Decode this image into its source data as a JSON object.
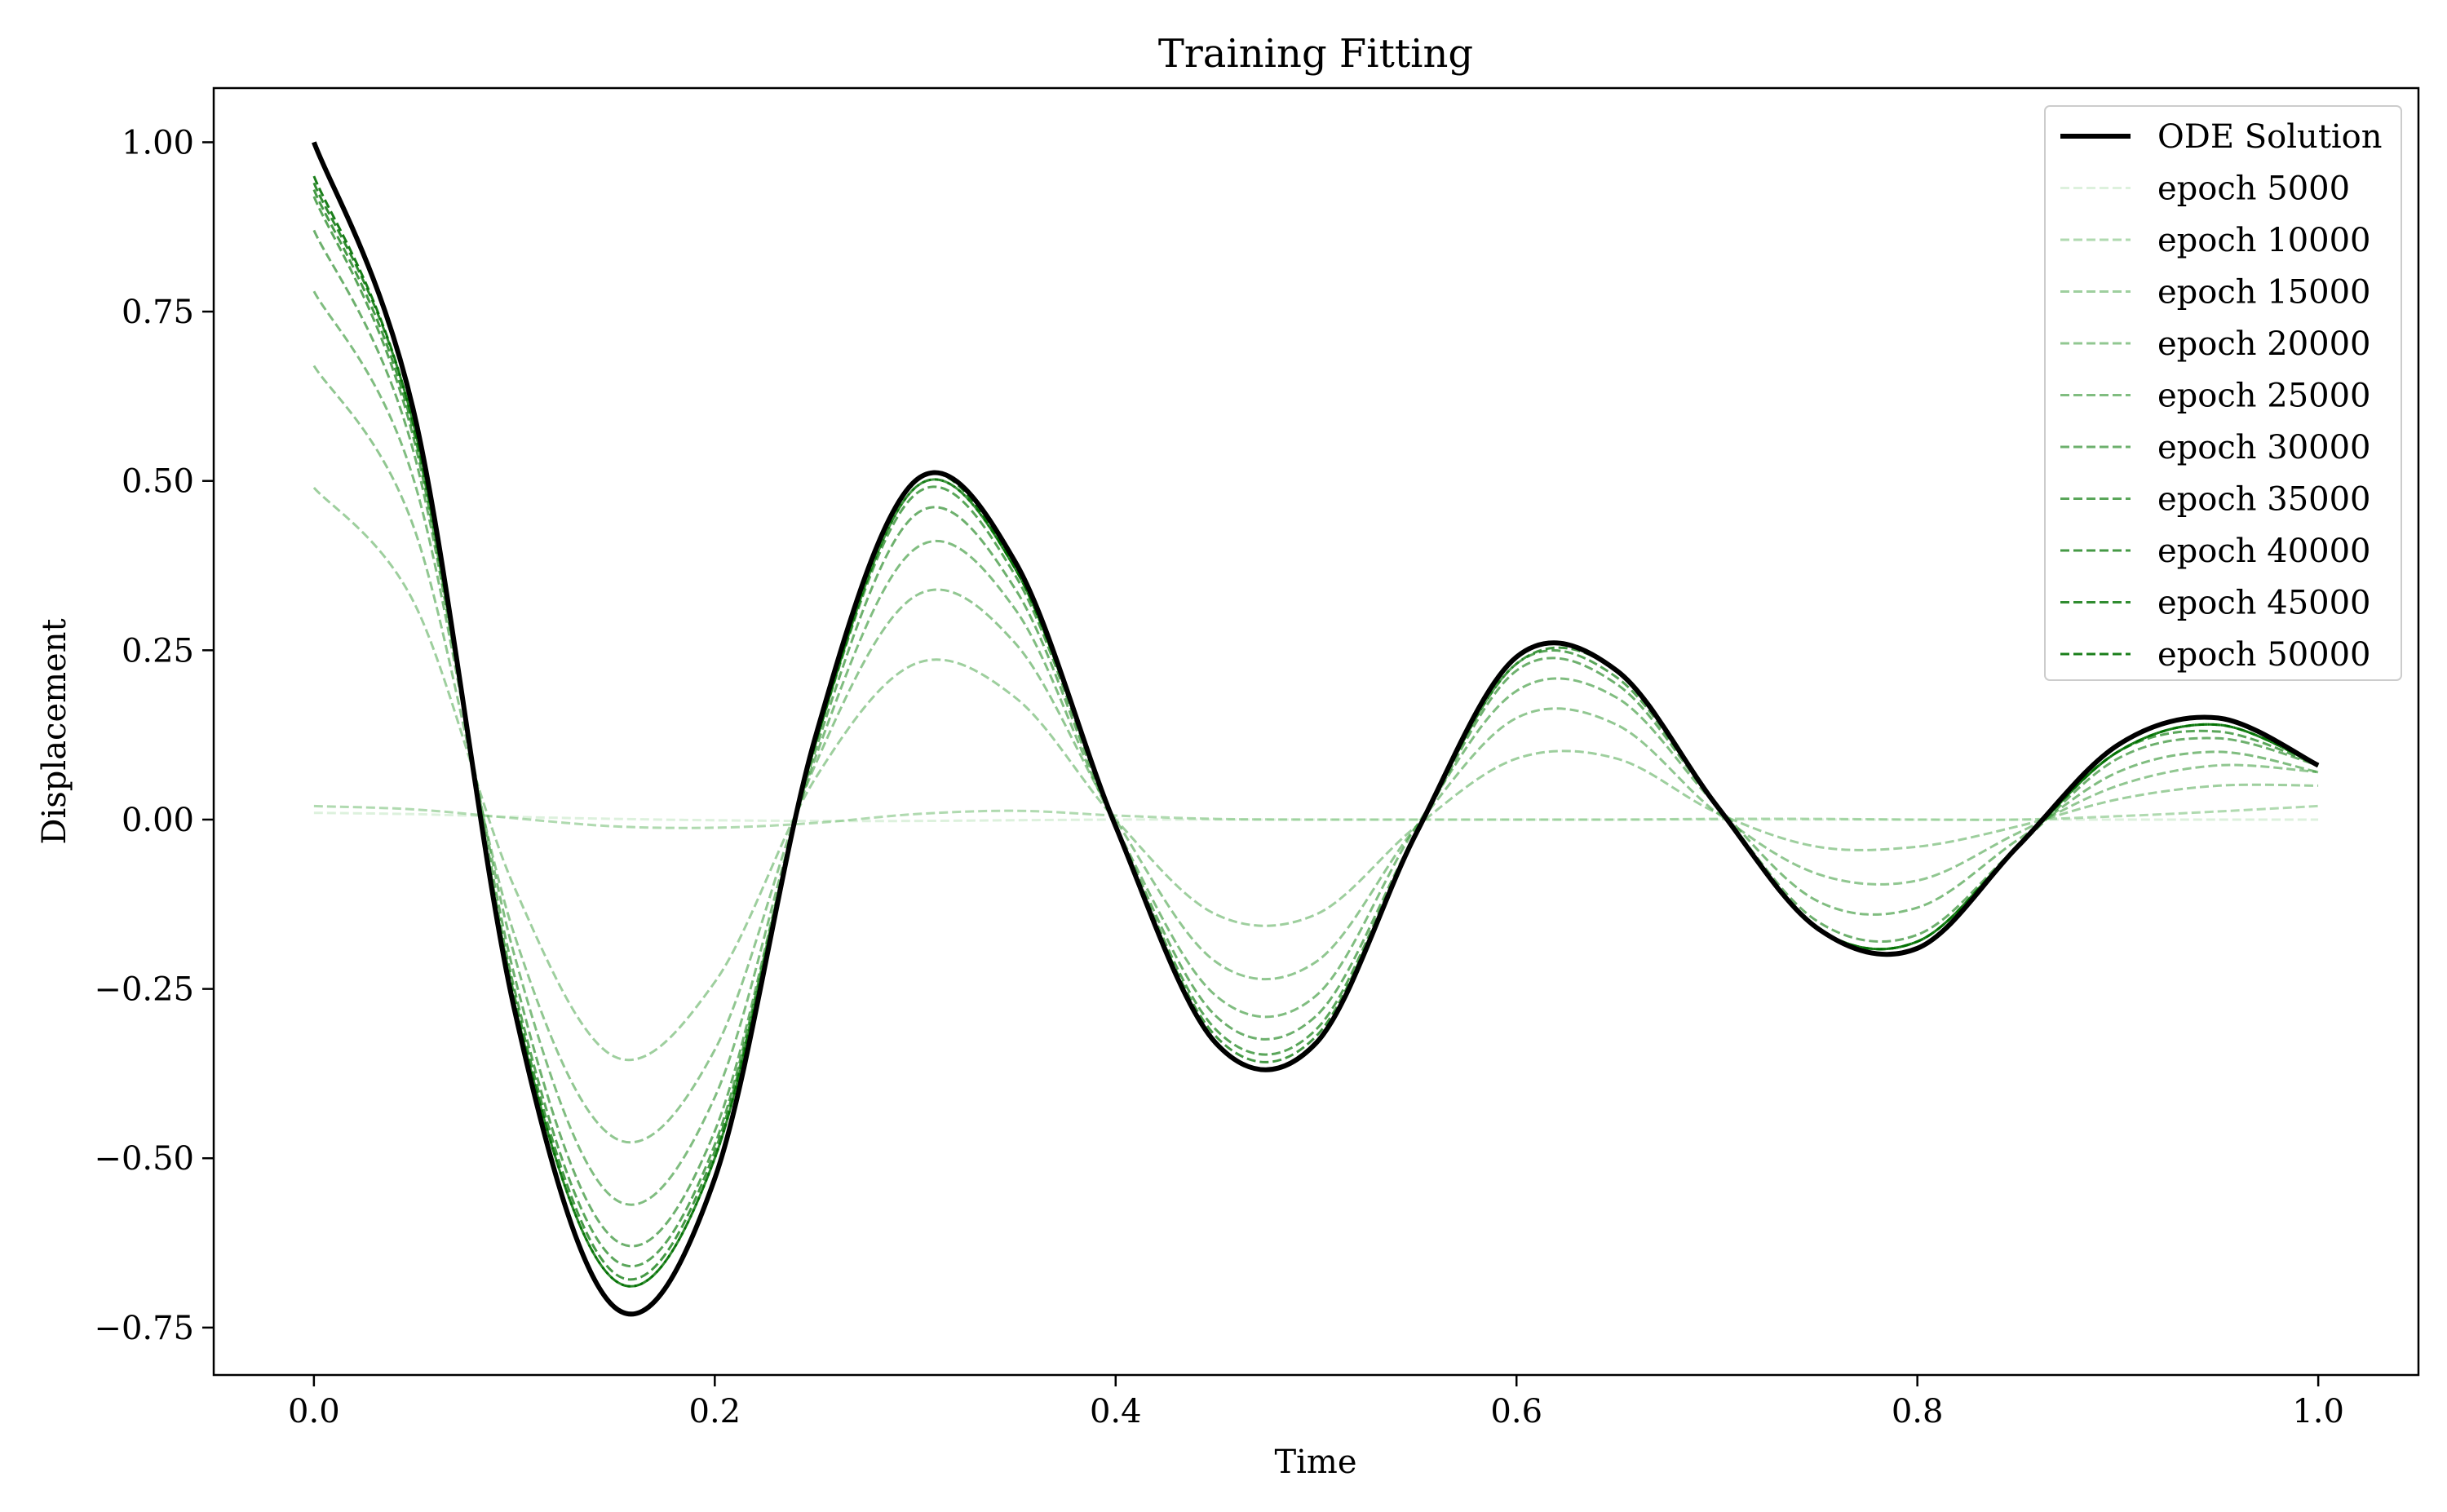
{
  "chart_data": {
    "type": "line",
    "title": "Training Fitting",
    "xlabel": "Time",
    "ylabel": "Displacement",
    "xlim": [
      -0.05,
      1.05
    ],
    "ylim": [
      -0.82,
      1.08
    ],
    "xticks": [
      0.0,
      0.2,
      0.4,
      0.6,
      0.8,
      1.0
    ],
    "xtick_labels": [
      "0.0",
      "0.2",
      "0.4",
      "0.6",
      "0.8",
      "1.0"
    ],
    "yticks": [
      1.0,
      0.75,
      0.5,
      0.25,
      0.0,
      -0.25,
      -0.5,
      -0.75
    ],
    "ytick_labels": [
      "1.00",
      "0.75",
      "0.50",
      "0.25",
      "0.00",
      "−0.25",
      "−0.50",
      "−0.75"
    ],
    "grid": false,
    "legend_position": "top-right",
    "x": [
      0.0,
      0.05,
      0.1,
      0.15,
      0.2,
      0.25,
      0.3,
      0.35,
      0.4,
      0.45,
      0.5,
      0.55,
      0.6,
      0.65,
      0.7,
      0.75,
      0.8,
      0.85,
      0.9,
      0.95,
      1.0
    ],
    "series": [
      {
        "name": "ODE Solution",
        "color": "#000000",
        "style": "solid",
        "opacity": 1.0,
        "values": [
          1.0,
          0.6,
          -0.28,
          -0.72,
          -0.53,
          0.12,
          0.5,
          0.38,
          -0.01,
          -0.33,
          -0.33,
          -0.02,
          0.24,
          0.22,
          0.02,
          -0.16,
          -0.19,
          -0.04,
          0.11,
          0.15,
          0.08
        ]
      },
      {
        "name": "epoch 5000",
        "color": "#8fd08f",
        "style": "dashed",
        "opacity": 0.3,
        "values": [
          0.01,
          0.008,
          0.004,
          0.001,
          -0.001,
          -0.002,
          -0.002,
          -0.001,
          0.0,
          0.0,
          0.0,
          0.0,
          0.0,
          0.0,
          0.0,
          0.0,
          0.0,
          0.0,
          0.0,
          0.0,
          0.0
        ]
      },
      {
        "name": "epoch 10000",
        "color": "#62b562",
        "style": "dashed",
        "opacity": 0.5,
        "values": [
          0.02,
          0.015,
          0.002,
          -0.01,
          -0.012,
          -0.005,
          0.008,
          0.013,
          0.006,
          0.001,
          0.0,
          0.0,
          0.0,
          0.0,
          0.001,
          0.001,
          0.0,
          0.0,
          0.005,
          0.012,
          0.02
        ]
      },
      {
        "name": "epoch 15000",
        "color": "#4fa84f",
        "style": "dashed",
        "opacity": 0.55,
        "values": [
          0.49,
          0.32,
          -0.1,
          -0.35,
          -0.24,
          0.06,
          0.23,
          0.18,
          0.0,
          -0.14,
          -0.14,
          -0.01,
          0.09,
          0.09,
          0.01,
          -0.04,
          -0.04,
          -0.01,
          0.03,
          0.05,
          0.05
        ]
      },
      {
        "name": "epoch 20000",
        "color": "#47a147",
        "style": "dashed",
        "opacity": 0.6,
        "values": [
          0.67,
          0.43,
          -0.17,
          -0.47,
          -0.34,
          0.08,
          0.33,
          0.26,
          0.0,
          -0.21,
          -0.21,
          -0.01,
          0.15,
          0.14,
          0.01,
          -0.08,
          -0.09,
          -0.02,
          0.05,
          0.08,
          0.07
        ]
      },
      {
        "name": "epoch 25000",
        "color": "#3c993c",
        "style": "dashed",
        "opacity": 0.65,
        "values": [
          0.78,
          0.5,
          -0.2,
          -0.56,
          -0.41,
          0.09,
          0.4,
          0.31,
          -0.01,
          -0.26,
          -0.26,
          -0.01,
          0.19,
          0.18,
          0.02,
          -0.12,
          -0.13,
          -0.03,
          0.07,
          0.1,
          0.07
        ]
      },
      {
        "name": "epoch 30000",
        "color": "#2f8f2f",
        "style": "dashed",
        "opacity": 0.7,
        "values": [
          0.87,
          0.54,
          -0.23,
          -0.62,
          -0.46,
          0.1,
          0.45,
          0.34,
          -0.01,
          -0.29,
          -0.29,
          -0.02,
          0.22,
          0.2,
          0.02,
          -0.15,
          -0.17,
          -0.04,
          0.09,
          0.12,
          0.08
        ]
      },
      {
        "name": "epoch 35000",
        "color": "#238823",
        "style": "dashed",
        "opacity": 0.75,
        "values": [
          0.92,
          0.56,
          -0.25,
          -0.65,
          -0.48,
          0.11,
          0.48,
          0.36,
          -0.01,
          -0.31,
          -0.31,
          -0.02,
          0.23,
          0.21,
          0.02,
          -0.16,
          -0.18,
          -0.04,
          0.1,
          0.13,
          0.08
        ]
      },
      {
        "name": "epoch 40000",
        "color": "#178017",
        "style": "dashed",
        "opacity": 0.8,
        "values": [
          0.93,
          0.57,
          -0.26,
          -0.67,
          -0.49,
          0.11,
          0.49,
          0.37,
          -0.01,
          -0.32,
          -0.32,
          -0.02,
          0.23,
          0.22,
          0.02,
          -0.16,
          -0.18,
          -0.04,
          0.1,
          0.14,
          0.08
        ]
      },
      {
        "name": "epoch 45000",
        "color": "#0c780c",
        "style": "dashed",
        "opacity": 0.85,
        "values": [
          0.94,
          0.58,
          -0.27,
          -0.68,
          -0.5,
          0.11,
          0.49,
          0.37,
          -0.01,
          -0.33,
          -0.33,
          -0.02,
          0.24,
          0.22,
          0.02,
          -0.16,
          -0.18,
          -0.04,
          0.1,
          0.14,
          0.08
        ]
      },
      {
        "name": "epoch 50000",
        "color": "#007000",
        "style": "dashed",
        "opacity": 0.9,
        "values": [
          0.95,
          0.58,
          -0.27,
          -0.68,
          -0.5,
          0.11,
          0.5,
          0.37,
          -0.01,
          -0.33,
          -0.33,
          -0.02,
          0.24,
          0.22,
          0.02,
          -0.16,
          -0.18,
          -0.04,
          0.1,
          0.14,
          0.08
        ]
      }
    ]
  }
}
